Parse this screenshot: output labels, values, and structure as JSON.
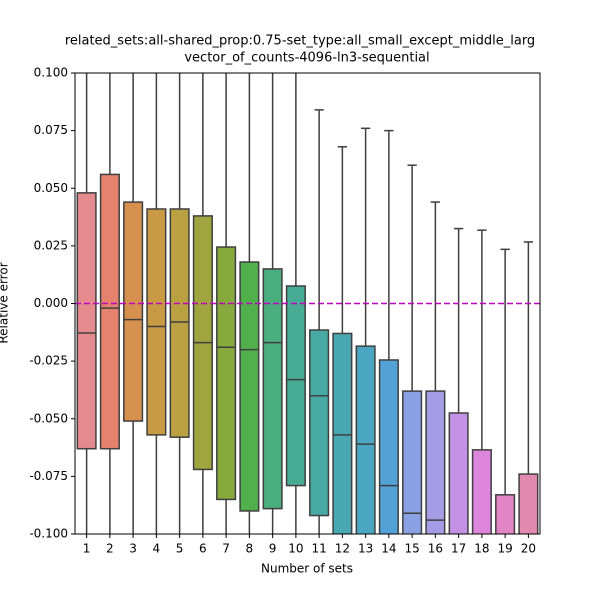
{
  "chart_data": {
    "type": "box",
    "title": [
      "related_sets:all-shared_prop:0.75-set_type:all_small_except_middle_larg",
      "vector_of_counts-4096-ln3-sequential"
    ],
    "x_label": "Number of sets",
    "y_label": "Relative error",
    "categories": [
      "1",
      "2",
      "3",
      "4",
      "5",
      "6",
      "7",
      "8",
      "9",
      "10",
      "11",
      "12",
      "13",
      "14",
      "15",
      "16",
      "17",
      "18",
      "19",
      "20"
    ],
    "colors": [
      "#e58b8e",
      "#e5826e",
      "#d6914f",
      "#c89a43",
      "#b9a141",
      "#a1a53f",
      "#87aa3e",
      "#50b04c",
      "#4aae7f",
      "#48ac94",
      "#47aba4",
      "#49a9b2",
      "#4ba7c1",
      "#53a2d5",
      "#8aa2e4",
      "#a69be5",
      "#c392e4",
      "#de86dc",
      "#e285c7",
      "#e489b0"
    ],
    "boxes": [
      {
        "whisker_low": null,
        "q1": -0.063,
        "median": -0.0128,
        "q3": 0.048,
        "whisker_high": null
      },
      {
        "whisker_low": null,
        "q1": -0.063,
        "median": -0.002,
        "q3": 0.056,
        "whisker_high": null
      },
      {
        "whisker_low": null,
        "q1": -0.051,
        "median": -0.007,
        "q3": 0.044,
        "whisker_high": null
      },
      {
        "whisker_low": null,
        "q1": -0.057,
        "median": -0.01,
        "q3": 0.041,
        "whisker_high": null
      },
      {
        "whisker_low": null,
        "q1": -0.058,
        "median": -0.008,
        "q3": 0.041,
        "whisker_high": null
      },
      {
        "whisker_low": null,
        "q1": -0.072,
        "median": -0.017,
        "q3": 0.038,
        "whisker_high": null
      },
      {
        "whisker_low": null,
        "q1": -0.085,
        "median": -0.019,
        "q3": 0.0245,
        "whisker_high": null
      },
      {
        "whisker_low": null,
        "q1": -0.09,
        "median": -0.02,
        "q3": 0.018,
        "whisker_high": null
      },
      {
        "whisker_low": null,
        "q1": -0.089,
        "median": -0.017,
        "q3": 0.015,
        "whisker_high": null
      },
      {
        "whisker_low": null,
        "q1": -0.079,
        "median": -0.033,
        "q3": 0.0076,
        "whisker_high": null
      },
      {
        "whisker_low": null,
        "q1": -0.092,
        "median": -0.04,
        "q3": -0.0115,
        "whisker_high": 0.084
      },
      {
        "whisker_low": null,
        "q1": null,
        "median": -0.057,
        "q3": -0.013,
        "whisker_high": 0.068
      },
      {
        "whisker_low": null,
        "q1": null,
        "median": -0.061,
        "q3": -0.0185,
        "whisker_high": 0.076
      },
      {
        "whisker_low": null,
        "q1": null,
        "median": -0.079,
        "q3": -0.0245,
        "whisker_high": 0.075
      },
      {
        "whisker_low": null,
        "q1": null,
        "median": -0.091,
        "q3": -0.038,
        "whisker_high": 0.06
      },
      {
        "whisker_low": null,
        "q1": null,
        "median": -0.094,
        "q3": -0.038,
        "whisker_high": 0.044
      },
      {
        "whisker_low": null,
        "q1": null,
        "median": null,
        "q3": -0.0475,
        "whisker_high": 0.0325
      },
      {
        "whisker_low": null,
        "q1": null,
        "median": null,
        "q3": -0.0635,
        "whisker_high": 0.0318
      },
      {
        "whisker_low": null,
        "q1": null,
        "median": null,
        "q3": -0.083,
        "whisker_high": 0.0235
      },
      {
        "whisker_low": null,
        "q1": null,
        "median": null,
        "q3": -0.074,
        "whisker_high": 0.0267
      }
    ],
    "reference_line": {
      "y": 0,
      "color": "#bf00bf"
    },
    "ylim": [
      -0.1,
      0.1
    ],
    "yticks": [
      {
        "value": -0.1,
        "label": "-0.100"
      },
      {
        "value": -0.075,
        "label": "-0.075"
      },
      {
        "value": -0.05,
        "label": "-0.050"
      },
      {
        "value": -0.025,
        "label": "-0.025"
      },
      {
        "value": 0,
        "label": "0.000"
      },
      {
        "value": 0.025,
        "label": "0.025"
      },
      {
        "value": 0.05,
        "label": "0.050"
      },
      {
        "value": 0.075,
        "label": "0.075"
      },
      {
        "value": 0.1,
        "label": "0.100"
      }
    ]
  }
}
